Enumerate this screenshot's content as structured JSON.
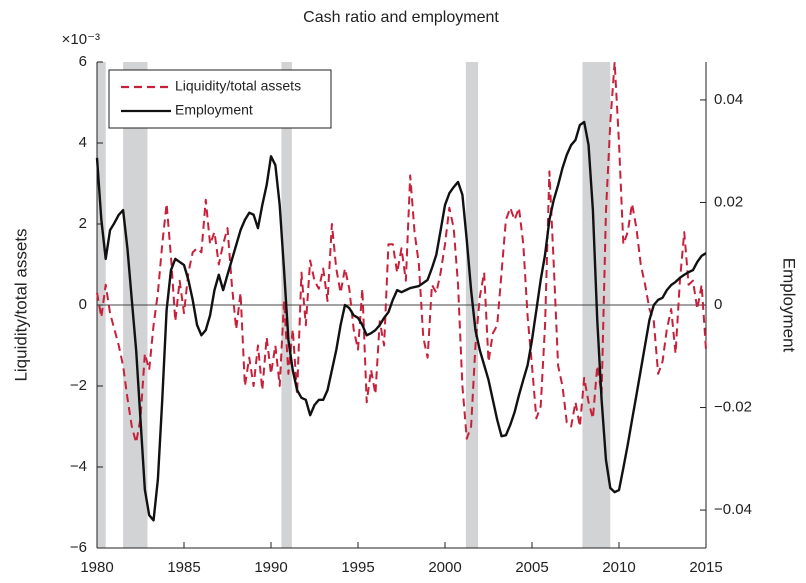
{
  "chart_data": {
    "type": "line",
    "title": "Cash ratio and employment",
    "ylabel": "Liquidity/total assets",
    "y2label": "Employment",
    "y_multiplier": "×10⁻³",
    "x": [
      1980,
      1980.25,
      1980.5,
      1980.75,
      1981,
      1981.25,
      1981.5,
      1981.75,
      1982,
      1982.25,
      1982.5,
      1982.75,
      1983,
      1983.25,
      1983.5,
      1983.75,
      1984,
      1984.25,
      1984.5,
      1984.75,
      1985,
      1985.25,
      1985.5,
      1985.75,
      1986,
      1986.25,
      1986.5,
      1986.75,
      1987,
      1987.25,
      1987.5,
      1987.75,
      1988,
      1988.25,
      1988.5,
      1988.75,
      1989,
      1989.25,
      1989.5,
      1989.75,
      1990,
      1990.25,
      1990.5,
      1990.75,
      1991,
      1991.25,
      1991.5,
      1991.75,
      1992,
      1992.25,
      1992.5,
      1992.75,
      1993,
      1993.25,
      1993.5,
      1993.75,
      1994,
      1994.25,
      1994.5,
      1994.75,
      1995,
      1995.25,
      1995.5,
      1995.75,
      1996,
      1996.25,
      1996.5,
      1996.75,
      1997,
      1997.25,
      1997.5,
      1997.75,
      1998,
      1998.25,
      1998.5,
      1998.75,
      1999,
      1999.25,
      1999.5,
      1999.75,
      2000,
      2000.25,
      2000.5,
      2000.75,
      2001,
      2001.25,
      2001.5,
      2001.75,
      2002,
      2002.25,
      2002.5,
      2002.75,
      2003,
      2003.25,
      2003.5,
      2003.75,
      2004,
      2004.25,
      2004.5,
      2004.75,
      2005,
      2005.25,
      2005.5,
      2005.75,
      2006,
      2006.25,
      2006.5,
      2006.75,
      2007,
      2007.25,
      2007.5,
      2007.75,
      2008,
      2008.25,
      2008.5,
      2008.75,
      2009,
      2009.25,
      2009.5,
      2009.75,
      2010,
      2010.25,
      2010.5,
      2010.75,
      2011,
      2011.25,
      2011.5,
      2011.75,
      2012,
      2012.25,
      2012.5,
      2012.75,
      2013,
      2013.25,
      2013.5,
      2013.75,
      2014,
      2014.25,
      2014.5,
      2014.75,
      2015
    ],
    "series": [
      {
        "name": "Liquidity/total assets",
        "color": "#c8203a",
        "dashed": true,
        "axis": "y",
        "values": [
          0.3,
          -0.3,
          0.5,
          -0.2,
          -0.6,
          -1.0,
          -1.5,
          -2.3,
          -3.0,
          -3.4,
          -2.8,
          -1.2,
          -1.6,
          -0.5,
          0.3,
          1.5,
          2.5,
          1.2,
          -0.4,
          0.6,
          -0.2,
          0.8,
          1.3,
          1.4,
          1.3,
          2.6,
          1.5,
          1.8,
          1.0,
          1.5,
          1.9,
          0.5,
          -0.6,
          0.3,
          -2.0,
          -1.3,
          -2.0,
          -1.0,
          -2.1,
          -0.8,
          -1.7,
          -1.0,
          -2.0,
          0.1,
          -1.7,
          -0.6,
          -2.2,
          0.8,
          -0.5,
          1.1,
          0.6,
          0.4,
          0.9,
          0.1,
          2.0,
          0.9,
          0.3,
          0.9,
          0.4,
          -0.6,
          -1.1,
          0.4,
          -2.4,
          -1.6,
          -2.2,
          -0.4,
          -1.0,
          1.5,
          1.5,
          0.8,
          1.4,
          0.6,
          3.2,
          1.8,
          1.0,
          -0.8,
          -1.3,
          0.5,
          0.3,
          0.8,
          1.5,
          2.4,
          1.9,
          0.5,
          -2.0,
          -3.3,
          -3.0,
          -1.0,
          0.2,
          0.8,
          -1.4,
          -0.7,
          -0.5,
          0.8,
          2.1,
          2.4,
          2.1,
          2.4,
          1.5,
          -0.3,
          -1.5,
          -2.8,
          -2.5,
          -0.5,
          3.3,
          1.0,
          -1.5,
          -2.0,
          -2.9,
          -3.0,
          -2.4,
          -3.0,
          -1.8,
          -2.4,
          -2.8,
          -1.5,
          -2.2,
          2.3,
          4.5,
          6.0,
          4.0,
          1.5,
          1.8,
          2.5,
          1.9,
          1.0,
          0.5,
          -0.1,
          -0.4,
          -1.7,
          -1.4,
          -0.6,
          -0.1,
          -1.2,
          0.6,
          1.8,
          0.5,
          0.6,
          -0.1,
          0.5,
          -1.1
        ]
      },
      {
        "name": "Employment",
        "color": "#111111",
        "dashed": false,
        "axis": "y2",
        "values": [
          0.0287,
          0.0166,
          0.009,
          0.0146,
          0.016,
          0.0176,
          0.0185,
          0.011,
          0.001,
          -0.0088,
          -0.0224,
          -0.036,
          -0.041,
          -0.042,
          -0.034,
          -0.0185,
          -0.001,
          0.0068,
          0.009,
          0.0084,
          0.0078,
          0.0049,
          0.001,
          -0.0039,
          -0.0059,
          -0.0049,
          -0.002,
          0.0029,
          0.0059,
          0.0029,
          0.0059,
          0.0088,
          0.0117,
          0.0146,
          0.0166,
          0.018,
          0.0176,
          0.015,
          0.0195,
          0.0234,
          0.029,
          0.0273,
          0.0195,
          0.0068,
          -0.0068,
          -0.0127,
          -0.0166,
          -0.0181,
          -0.0185,
          -0.0215,
          -0.0195,
          -0.0185,
          -0.0185,
          -0.0166,
          -0.0127,
          -0.0088,
          -0.0039,
          0,
          -0.0006,
          -0.002,
          -0.0025,
          -0.0039,
          -0.0059,
          -0.0055,
          -0.0049,
          -0.0039,
          -0.0025,
          -0.0014,
          0.001,
          0.0029,
          0.0025,
          0.0029,
          0.0033,
          0.0035,
          0.0037,
          0.0043,
          0.0049,
          0.0072,
          0.0098,
          0.0146,
          0.0195,
          0.0218,
          0.023,
          0.024,
          0.0215,
          0.0127,
          0.0029,
          -0.0049,
          -0.0088,
          -0.0117,
          -0.0146,
          -0.0185,
          -0.0224,
          -0.0256,
          -0.0254,
          -0.0234,
          -0.0209,
          -0.0176,
          -0.0146,
          -0.0117,
          -0.0068,
          -0.001,
          0.0049,
          0.0098,
          0.0166,
          0.0205,
          0.0234,
          0.0267,
          0.0293,
          0.0312,
          0.0322,
          0.0351,
          0.0357,
          0.0312,
          0.0185,
          -0.0029,
          -0.0185,
          -0.0302,
          -0.0357,
          -0.0365,
          -0.0361,
          -0.0318,
          -0.0273,
          -0.0224,
          -0.0176,
          -0.0127,
          -0.0078,
          -0.0029,
          0,
          0.001,
          0.0014,
          0.0029,
          0.0039,
          0.0045,
          0.0053,
          0.0059,
          0.0064,
          0.0068,
          0.0084,
          0.0096,
          0.0101
        ]
      }
    ],
    "shaded_periods": [
      [
        1980,
        1980.5
      ],
      [
        1981.5,
        1982.9
      ],
      [
        1990.6,
        1991.2
      ],
      [
        2001.2,
        2001.9
      ],
      [
        2007.9,
        2009.5
      ]
    ],
    "shade_color": "#d1d3d4",
    "zero_line": true,
    "xlim": [
      1980,
      2015
    ],
    "xticks": [
      1980,
      1985,
      1990,
      1995,
      2000,
      2005,
      2010,
      2015
    ],
    "ylim": [
      -6,
      6
    ],
    "yticks": [
      {
        "value": -6,
        "label": "−6"
      },
      {
        "value": -4,
        "label": "−4"
      },
      {
        "value": -2,
        "label": "−2"
      },
      0,
      2,
      4,
      6
    ],
    "y2lim": [
      -0.0474,
      0.0474
    ],
    "y2ticks": [
      {
        "value": -0.04,
        "label": "−0.04"
      },
      {
        "value": -0.02,
        "label": "−0.02"
      },
      0,
      0.02,
      0.04
    ],
    "legend": "upper-left"
  }
}
